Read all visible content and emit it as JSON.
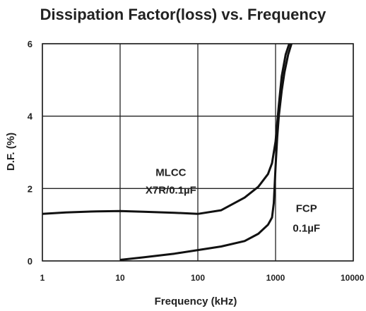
{
  "chart_data": {
    "type": "line",
    "title": "Dissipation Factor(loss) vs. Frequency",
    "xlabel": "Frequency (kHz)",
    "ylabel": "D.F. (%)",
    "x_scale": "log",
    "xlim": [
      1,
      10000
    ],
    "ylim": [
      0,
      6
    ],
    "x_ticks": [
      1,
      10,
      100,
      1000,
      10000
    ],
    "x_tick_labels": [
      "1",
      "10",
      "100",
      "1000",
      "10000"
    ],
    "y_ticks": [
      0,
      2,
      4,
      6
    ],
    "y_tick_labels": [
      "0",
      "2",
      "4",
      "6"
    ],
    "grid": true,
    "legend": "none",
    "series_color": "#111111",
    "grid_color": "#222222",
    "series": [
      {
        "name": "MLCC X7R/0.1µF",
        "label_lines": [
          "MLCC",
          "X7R/0.1µF"
        ],
        "x": [
          1,
          2,
          5,
          10,
          20,
          50,
          100,
          200,
          400,
          600,
          800,
          900,
          1000,
          1100,
          1200,
          1350,
          1500
        ],
        "y": [
          1.3,
          1.34,
          1.37,
          1.38,
          1.36,
          1.33,
          1.3,
          1.4,
          1.75,
          2.05,
          2.4,
          2.7,
          3.3,
          4.3,
          5.1,
          5.7,
          6.0
        ]
      },
      {
        "name": "FCP 0.1µF",
        "label_lines": [
          "FCP",
          "0.1µF"
        ],
        "x": [
          10,
          20,
          50,
          100,
          200,
          400,
          600,
          800,
          900,
          950,
          1000,
          1050,
          1100,
          1200,
          1300,
          1450,
          1600
        ],
        "y": [
          0.03,
          0.1,
          0.2,
          0.3,
          0.4,
          0.55,
          0.75,
          1.0,
          1.2,
          1.6,
          2.6,
          3.4,
          4.0,
          4.7,
          5.2,
          5.7,
          6.0
        ]
      }
    ]
  }
}
